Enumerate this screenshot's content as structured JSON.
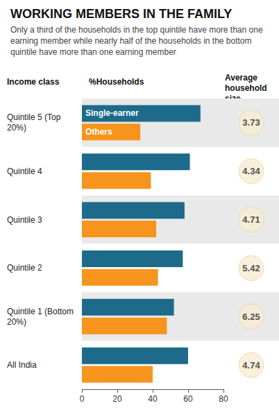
{
  "chart_data": {
    "type": "bar",
    "orientation": "horizontal",
    "title": "WORKING MEMBERS IN THE FAMILY",
    "subtitle": "Only a third of the households in the top quintile have more than one earning member while nearly half of the households in the bottom quintile have more than one earning member",
    "category_header": "Income class",
    "value_header": "%Households",
    "household_size_header": "Average household size",
    "categories": [
      "Quintile 5 (Top 20%)",
      "Quintile 4",
      "Quintile 3",
      "Quintile 2",
      "Quintile 1 (Bottom 20%)",
      "All India"
    ],
    "series": [
      {
        "name": "Single-earner",
        "color": "#1d6a8b",
        "values": [
          67,
          61,
          58,
          57,
          52,
          60
        ]
      },
      {
        "name": "Others",
        "color": "#f7941d",
        "values": [
          33,
          39,
          42,
          43,
          48,
          40
        ]
      }
    ],
    "household_size": [
      3.73,
      4.34,
      4.71,
      5.42,
      6.25,
      4.74
    ],
    "xlim": [
      0,
      80
    ],
    "xticks": [
      0,
      20,
      40,
      60,
      80
    ],
    "grid": false
  }
}
